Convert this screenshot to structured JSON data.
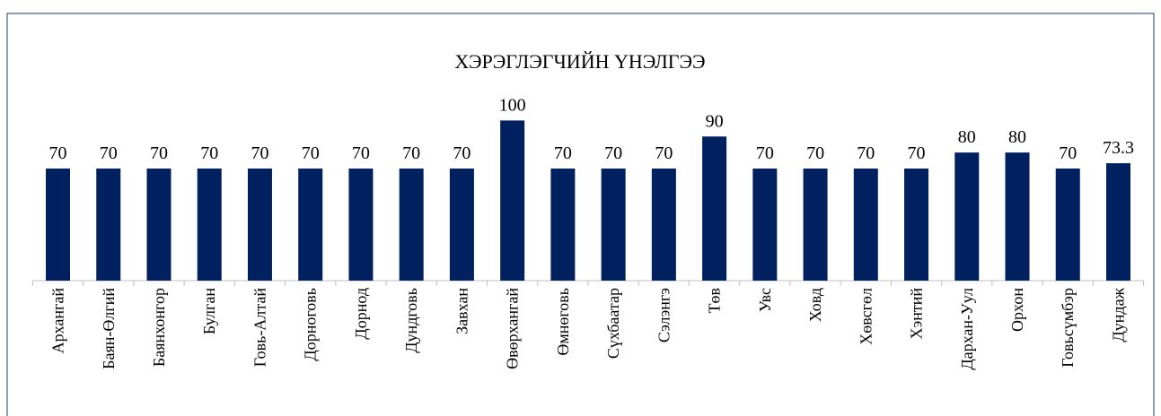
{
  "chart_data": {
    "type": "bar",
    "title": "ХЭРЭГЛЭГЧИЙН ҮНЭЛГЭЭ",
    "categories": [
      "Архангай",
      "Баян-Өлгий",
      "Баянхонгор",
      "Булган",
      "Говь-Алтай",
      "Дорноговь",
      "Дорнод",
      "Дундговь",
      "Завхан",
      "Өвөрхангай",
      "Өмнөговь",
      "Сүхбаатар",
      "Сэлэнгэ",
      "Төв",
      "Увс",
      "Ховд",
      "Хөвсгөл",
      "Хэнтий",
      "Дархан-Уул",
      "Орхон",
      "Говьсүмбэр",
      "Дундаж"
    ],
    "values": [
      70,
      70,
      70,
      70,
      70,
      70,
      70,
      70,
      70,
      100,
      70,
      70,
      70,
      90,
      70,
      70,
      70,
      70,
      80,
      80,
      70,
      73.3
    ],
    "color": "#002060",
    "ylim": [
      0,
      100
    ]
  }
}
